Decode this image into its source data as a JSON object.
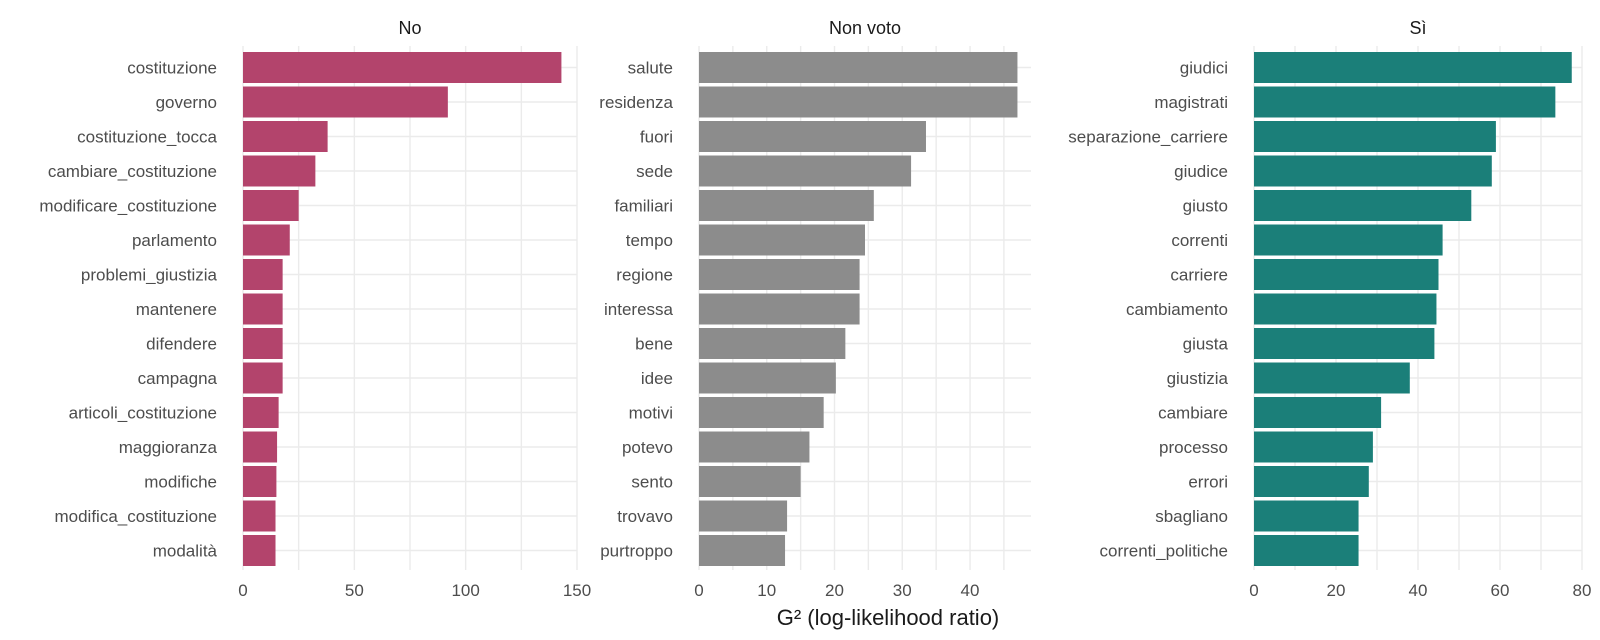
{
  "chart_data": {
    "type": "bar",
    "orientation": "horizontal",
    "xlabel": "G² (log-likelihood ratio)",
    "ylabel": "",
    "grid": true,
    "legend": "none",
    "panels": [
      {
        "title": "No",
        "color": "#B3446C",
        "xlim": [
          0,
          150
        ],
        "xticks": [
          0,
          50,
          100,
          150
        ],
        "categories": [
          "costituzione",
          "governo",
          "costituzione_tocca",
          "cambiare_costituzione",
          "modificare_costituzione",
          "parlamento",
          "problemi_giustizia",
          "mantenere",
          "difendere",
          "campagna",
          "articoli_costituzione",
          "maggioranza",
          "modifiche",
          "modifica_costituzione",
          "modalità"
        ],
        "values": [
          143.0,
          92.0,
          38.0,
          32.5,
          25.0,
          21.0,
          17.8,
          17.8,
          17.8,
          17.8,
          16.0,
          15.3,
          15.0,
          14.6,
          14.6
        ]
      },
      {
        "title": "Non voto",
        "color": "#8C8C8C",
        "xlim": [
          0,
          49
        ],
        "xticks": [
          0,
          10,
          20,
          30,
          40
        ],
        "categories": [
          "salute",
          "residenza",
          "fuori",
          "sede",
          "familiari",
          "tempo",
          "regione",
          "interessa",
          "bene",
          "idee",
          "motivi",
          "potevo",
          "sento",
          "trovavo",
          "purtroppo"
        ],
        "values": [
          47.0,
          47.0,
          33.5,
          31.3,
          25.8,
          24.5,
          23.7,
          23.7,
          21.6,
          20.2,
          18.4,
          16.3,
          15.0,
          13.0,
          12.7
        ]
      },
      {
        "title": "Sì",
        "color": "#1B7F79",
        "xlim": [
          0,
          80
        ],
        "xticks": [
          0,
          20,
          40,
          60,
          80
        ],
        "categories": [
          "giudici",
          "magistrati",
          "separazione_carriere",
          "giudice",
          "giusto",
          "correnti",
          "carriere",
          "cambiamento",
          "giusta",
          "giustizia",
          "cambiare",
          "processo",
          "errori",
          "sbagliano",
          "correnti_politiche"
        ],
        "values": [
          77.5,
          73.5,
          59.0,
          58.0,
          53.0,
          46.0,
          45.0,
          44.5,
          44.0,
          38.0,
          31.0,
          29.0,
          28.0,
          25.5,
          25.5
        ]
      }
    ]
  }
}
